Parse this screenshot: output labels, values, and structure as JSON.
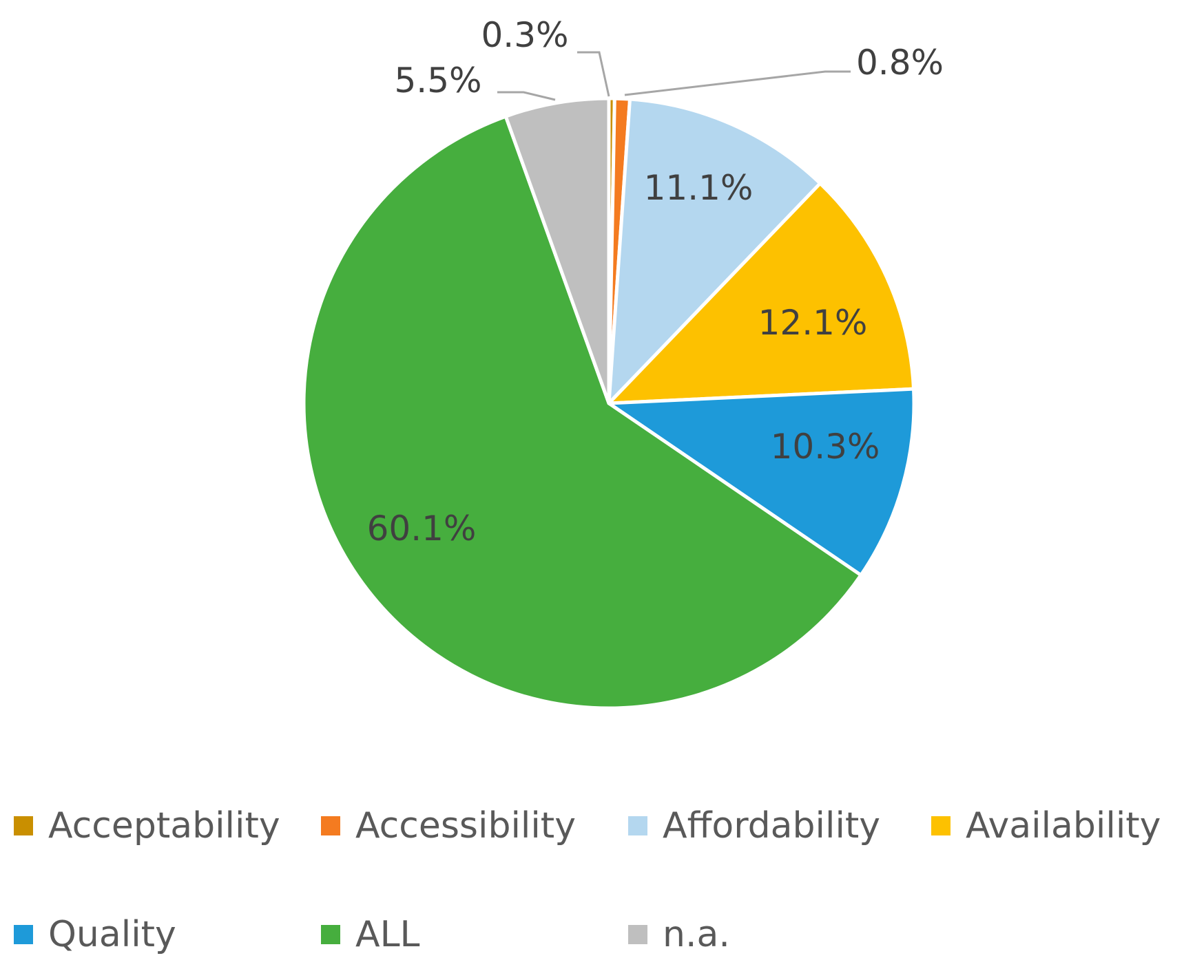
{
  "chart_data": {
    "type": "pie",
    "title": "",
    "slices": [
      {
        "label": "Acceptability",
        "value": 0.3,
        "display": "0.3%",
        "color": "#C98F00"
      },
      {
        "label": "Accessibility",
        "value": 0.8,
        "display": "0.8%",
        "color": "#F47B20"
      },
      {
        "label": "Affordability",
        "value": 11.1,
        "display": "11.1%",
        "color": "#B4D7EF"
      },
      {
        "label": "Availability",
        "value": 12.1,
        "display": "12.1%",
        "color": "#FDC100"
      },
      {
        "label": "Quality",
        "value": 10.3,
        "display": "10.3%",
        "color": "#1E9AD9"
      },
      {
        "label": "ALL",
        "value": 60.1,
        "display": "60.1%",
        "color": "#46AE3E"
      },
      {
        "label": "n.a.",
        "value": 5.5,
        "display": "5.5%",
        "color": "#BFBFBF"
      }
    ],
    "start_angle_deg": 0,
    "direction": "clockwise",
    "legend_position": "bottom"
  }
}
